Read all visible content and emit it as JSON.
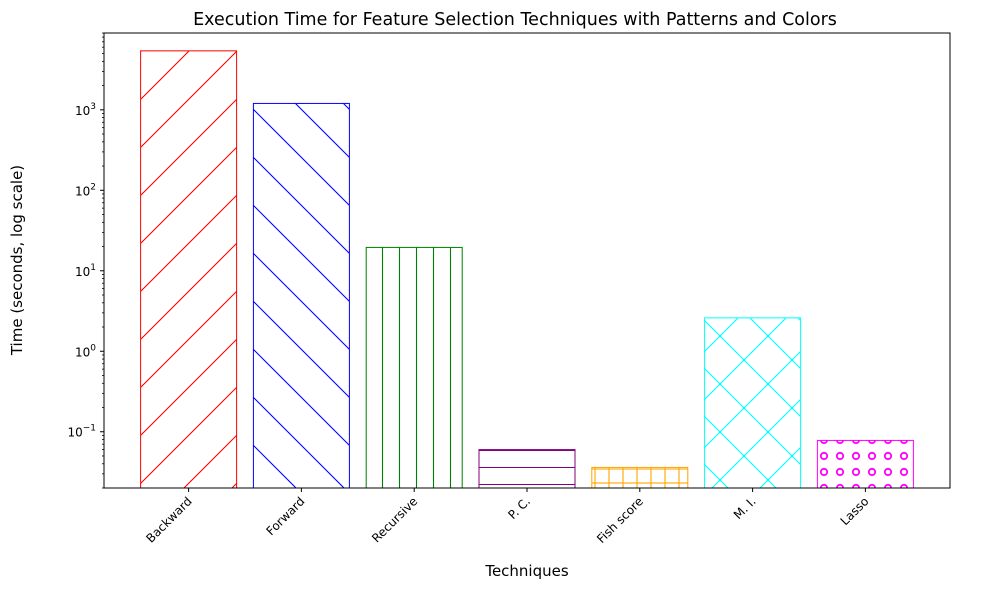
{
  "chart_data": {
    "type": "bar",
    "title": "Execution Time for Feature Selection Techniques with Patterns and Colors",
    "xlabel": "Techniques",
    "ylabel": "Time (seconds, log scale)",
    "yscale": "log",
    "ylim": [
      0.02,
      9000
    ],
    "yticks": [
      {
        "value": 0.1,
        "base": "10",
        "exp": "−1"
      },
      {
        "value": 1,
        "base": "10",
        "exp": "0"
      },
      {
        "value": 10,
        "base": "10",
        "exp": "1"
      },
      {
        "value": 100,
        "base": "10",
        "exp": "2"
      },
      {
        "value": 1000,
        "base": "10",
        "exp": "3"
      }
    ],
    "categories": [
      "Backward",
      "Forward",
      "Recursive",
      "P. C.",
      "Fish score",
      "M. I.",
      "Lasso"
    ],
    "values": [
      5400,
      1200,
      19.5,
      0.06,
      0.036,
      2.6,
      0.078
    ],
    "colors": [
      "#ff0000",
      "#0000ff",
      "#008000",
      "#800080",
      "#ffa500",
      "#00ffff",
      "#ff00ff"
    ],
    "patterns": [
      "/",
      "\\",
      "|",
      "-",
      "+",
      "x",
      "o"
    ],
    "grid": false,
    "legend": "none"
  }
}
